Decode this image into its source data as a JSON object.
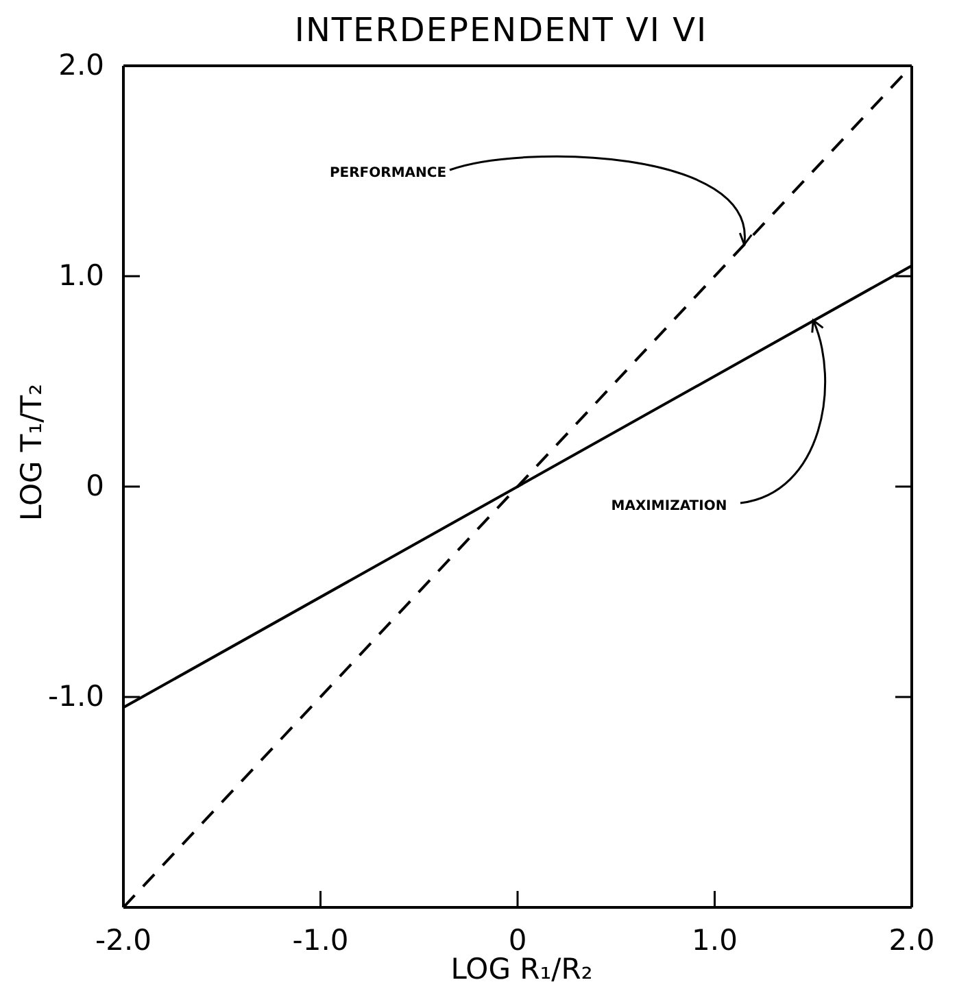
{
  "chart_data": {
    "type": "line",
    "title": "INTERDEPENDENT VI VI",
    "xlabel": "LOG R₁/R₂",
    "ylabel": "LOG T₁/T₂",
    "x": [
      -2,
      2
    ],
    "series": [
      {
        "color": "#000000",
        "values": [
          -1.05,
          1.05
        ],
        "line_style": "solid"
      },
      {
        "color": "#000000",
        "values": [
          -2,
          2
        ],
        "line_style": "dashed"
      }
    ],
    "xlim": [
      -2,
      2
    ],
    "ylim": [
      -2,
      2
    ],
    "xticks": [
      {
        "value": -2,
        "label": "-2.0"
      },
      {
        "value": -1,
        "label": "-1.0"
      },
      0,
      {
        "value": 1,
        "label": "1.0"
      },
      {
        "value": 2,
        "label": "2.0"
      }
    ],
    "yticks": [
      {
        "value": -1,
        "label": "-1.0"
      },
      0,
      {
        "value": 1,
        "label": "1.0"
      },
      {
        "value": 2,
        "label": "2.0"
      }
    ],
    "annotations": [
      {
        "text": "PERFORMANCE",
        "x": 1.15,
        "y": 1.15
      },
      {
        "text": "MAXIMIZATION",
        "x": 1.5,
        "y": 0.79
      }
    ],
    "grid": false,
    "marker": "none"
  }
}
